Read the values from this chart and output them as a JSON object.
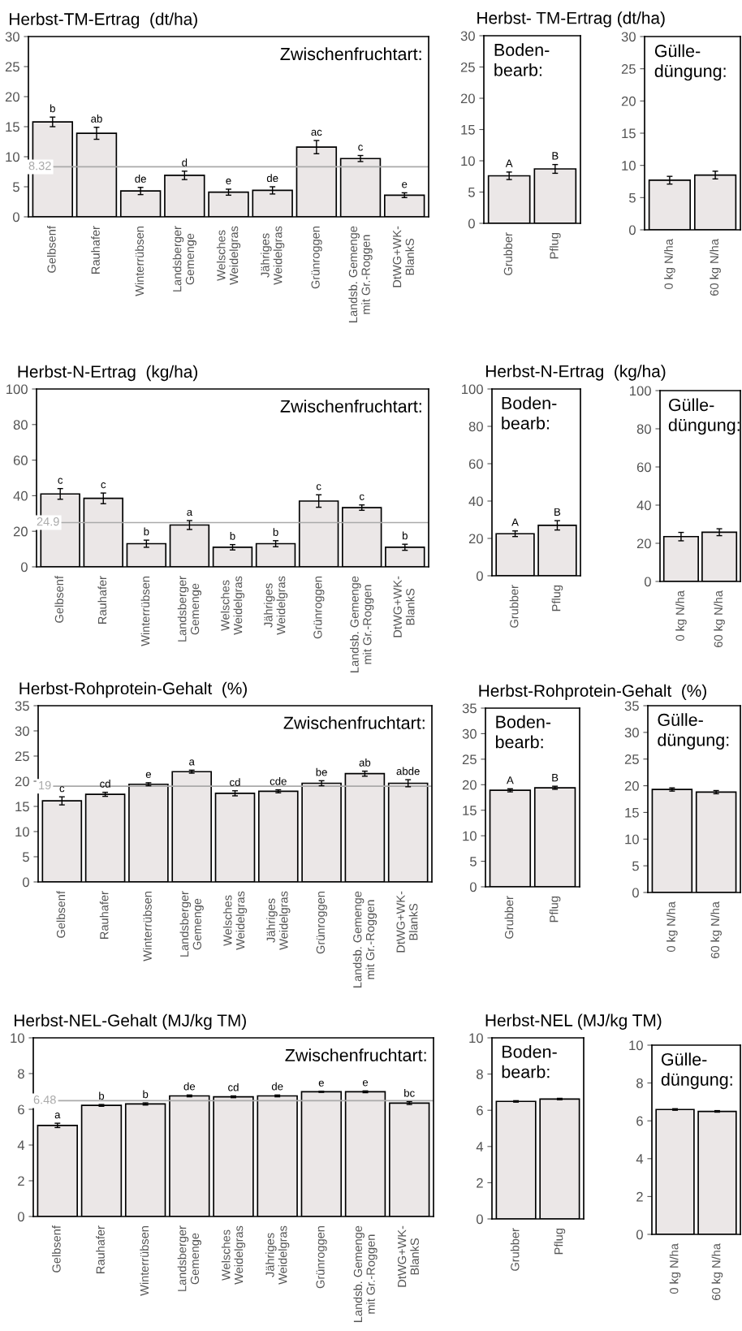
{
  "chart_data": [
    {
      "type": "bar",
      "title": "Herbst-TM-Ertrag  (dt/ha)",
      "categories": [
        "Gelbsenf",
        "Rauhafer",
        "Winterrübsen",
        "Landsberger\nGemenge",
        "Welsches\nWeidelgras",
        "Jähriges\nWeidelgras",
        "Grünroggen",
        "Landsb. Gemenge\nmit Gr.-Roggen",
        "DtWG+WK-\nBlankS"
      ],
      "values": [
        15.8,
        13.9,
        4.3,
        6.9,
        4.1,
        4.4,
        11.6,
        9.7,
        3.6
      ],
      "errors": [
        0.8,
        1.0,
        0.6,
        0.7,
        0.5,
        0.6,
        1.1,
        0.5,
        0.4
      ],
      "value_labels": [
        "b",
        "ab",
        "de",
        "d",
        "e",
        "de",
        "ac",
        "c",
        "e"
      ],
      "color": "#ebe7e7",
      "ylim": [
        0,
        30
      ],
      "yticks": [
        0,
        5,
        10,
        15,
        20,
        25,
        30
      ],
      "ref_lines": [
        {
          "axis": "y",
          "value": 8.32,
          "label": "8.32",
          "color": "#aaaaaa"
        }
      ],
      "annotations": [
        "Zwischenfruchtart:"
      ]
    },
    {
      "type": "bar",
      "title": "Herbst- TM-Ertrag (dt/ha)",
      "categories": [
        "Grubber",
        "Pflug"
      ],
      "values": [
        7.6,
        8.7
      ],
      "errors": [
        0.6,
        0.7
      ],
      "value_labels": [
        "A",
        "B"
      ],
      "color": "#ebe7e7",
      "ylim": [
        0,
        30
      ],
      "yticks": [
        0,
        5,
        10,
        15,
        20,
        25,
        30
      ],
      "annotations": [
        "Boden-\nbearb:"
      ]
    },
    {
      "type": "bar",
      "categories": [
        "0 kg N/ha",
        "60 kg N/ha"
      ],
      "values": [
        7.7,
        8.5
      ],
      "errors": [
        0.6,
        0.6
      ],
      "color": "#ebe7e7",
      "ylim": [
        0,
        30
      ],
      "yticks": [
        0,
        5,
        10,
        15,
        20,
        25,
        30
      ],
      "annotations": [
        "Gülle-\ndüngung:"
      ]
    },
    {
      "type": "bar",
      "title": "Herbst-N-Ertrag  (kg/ha)",
      "categories": [
        "Gelbsenf",
        "Rauhafer",
        "Winterrübsen",
        "Landsberger\nGemenge",
        "Welsches\nWeidelgras",
        "Jähriges\nWeidelgras",
        "Grünroggen",
        "Landsb. Gemenge\nmit Gr.-Roggen",
        "DtWG+WK-\nBlankS"
      ],
      "values": [
        41,
        38.5,
        13,
        23.5,
        11,
        13,
        37,
        33.3,
        11
      ],
      "errors": [
        3,
        3,
        2,
        2.5,
        1.5,
        1.7,
        3.5,
        1.5,
        1.7
      ],
      "value_labels": [
        "c",
        "c",
        "b",
        "a",
        "b",
        "b",
        "c",
        "c",
        "b"
      ],
      "color": "#ebe7e7",
      "ylim": [
        0,
        100
      ],
      "yticks": [
        0,
        20,
        40,
        60,
        80,
        100
      ],
      "ref_lines": [
        {
          "axis": "y",
          "value": 24.9,
          "label": "24.9",
          "color": "#aaaaaa"
        }
      ],
      "annotations": [
        "Zwischenfruchtart:"
      ]
    },
    {
      "type": "bar",
      "title": "Herbst-N-Ertrag  (kg/ha)",
      "categories": [
        "Grubber",
        "Pflug"
      ],
      "values": [
        22.5,
        27
      ],
      "errors": [
        1.5,
        2.5
      ],
      "value_labels": [
        "A",
        "B"
      ],
      "color": "#ebe7e7",
      "ylim": [
        0,
        100
      ],
      "yticks": [
        0,
        20,
        40,
        60,
        80,
        100
      ],
      "annotations": [
        "Boden-\nbearb:"
      ]
    },
    {
      "type": "bar",
      "categories": [
        "0 kg N/ha",
        "60 kg N/ha"
      ],
      "values": [
        23.5,
        25.8
      ],
      "errors": [
        2.2,
        1.8
      ],
      "color": "#ebe7e7",
      "ylim": [
        0,
        100
      ],
      "yticks": [
        0,
        20,
        40,
        60,
        80,
        100
      ],
      "annotations": [
        "Gülle-\ndüngung:"
      ]
    },
    {
      "type": "bar",
      "title": "Herbst-Rohprotein-Gehalt  (%)",
      "categories": [
        "Gelbsenf",
        "Rauhafer",
        "Winterrübsen",
        "Landsberger\nGemenge",
        "Welsches\nWeidelgras",
        "Jähriges\nWeidelgras",
        "Grünroggen",
        "Landsb. Gemenge\nmit Gr.-Roggen",
        "DtWG+WK-\nBlankS"
      ],
      "values": [
        16.1,
        17.4,
        19.4,
        21.9,
        17.6,
        18.0,
        19.6,
        21.5,
        19.6
      ],
      "errors": [
        0.8,
        0.4,
        0.3,
        0.3,
        0.5,
        0.3,
        0.5,
        0.5,
        0.7
      ],
      "value_labels": [
        "c",
        "cd",
        "e",
        "a",
        "cd",
        "cde",
        "be",
        "ab",
        "abde"
      ],
      "color": "#ebe7e7",
      "ylim": [
        0,
        35
      ],
      "yticks": [
        0,
        5,
        10,
        15,
        20,
        25,
        30,
        35
      ],
      "ref_lines": [
        {
          "axis": "y",
          "value": 19,
          "label": "19",
          "color": "#aaaaaa"
        }
      ],
      "annotations": [
        "Zwischenfruchtart:"
      ]
    },
    {
      "type": "bar",
      "title": "Herbst-Rohprotein-Gehalt  (%)",
      "categories": [
        "Grubber",
        "Pflug"
      ],
      "values": [
        18.9,
        19.4
      ],
      "errors": [
        0.3,
        0.3
      ],
      "value_labels": [
        "A",
        "B"
      ],
      "color": "#ebe7e7",
      "ylim": [
        0,
        35
      ],
      "yticks": [
        0,
        5,
        10,
        15,
        20,
        25,
        30,
        35
      ],
      "annotations": [
        "Boden-\nbearb:"
      ]
    },
    {
      "type": "bar",
      "categories": [
        "0 kg N/ha",
        "60 kg N/ha"
      ],
      "values": [
        19.3,
        18.8
      ],
      "errors": [
        0.3,
        0.3
      ],
      "color": "#ebe7e7",
      "ylim": [
        0,
        35
      ],
      "yticks": [
        0,
        5,
        10,
        15,
        20,
        25,
        30,
        35
      ],
      "annotations": [
        "Gülle-\ndüngung:"
      ]
    },
    {
      "type": "bar",
      "title": "Herbst-NEL-Gehalt (MJ/kg TM)",
      "categories": [
        "Gelbsenf",
        "Rauhafer",
        "Winterrübsen",
        "Landsberger\nGemenge",
        "Welsches\nWeidelgras",
        "Jähriges\nWeidelgras",
        "Grünroggen",
        "Landsb. Gemenge\nmit Gr.-Roggen",
        "DtWG+WK-\nBlankS"
      ],
      "values": [
        5.1,
        6.22,
        6.3,
        6.75,
        6.7,
        6.75,
        6.98,
        6.98,
        6.35
      ],
      "errors": [
        0.12,
        0.05,
        0.06,
        0.05,
        0.05,
        0.05,
        0.03,
        0.05,
        0.08
      ],
      "value_labels": [
        "a",
        "b",
        "b",
        "de",
        "cd",
        "de",
        "e",
        "e",
        "bc"
      ],
      "color": "#ebe7e7",
      "ylim": [
        0,
        10
      ],
      "yticks": [
        0,
        2,
        4,
        6,
        8,
        10
      ],
      "ref_lines": [
        {
          "axis": "y",
          "value": 6.48,
          "label": "6.48",
          "color": "#aaaaaa"
        }
      ],
      "annotations": [
        "Zwischenfruchtart:"
      ]
    },
    {
      "type": "bar",
      "title": "Herbst-NEL (MJ/kg TM)",
      "categories": [
        "Grubber",
        "Pflug"
      ],
      "values": [
        6.49,
        6.62
      ],
      "errors": [
        0.04,
        0.04
      ],
      "color": "#ebe7e7",
      "ylim": [
        0,
        10
      ],
      "yticks": [
        0,
        2,
        4,
        6,
        8,
        10
      ],
      "annotations": [
        "Boden-\nbearb:"
      ]
    },
    {
      "type": "bar",
      "categories": [
        "0 kg N/ha",
        "60 kg N/ha"
      ],
      "values": [
        6.6,
        6.5
      ],
      "errors": [
        0.04,
        0.04
      ],
      "color": "#ebe7e7",
      "ylim": [
        0,
        10
      ],
      "yticks": [
        0,
        2,
        4,
        6,
        8,
        10
      ],
      "annotations": [
        "Gülle-\ndüngung:"
      ]
    }
  ]
}
